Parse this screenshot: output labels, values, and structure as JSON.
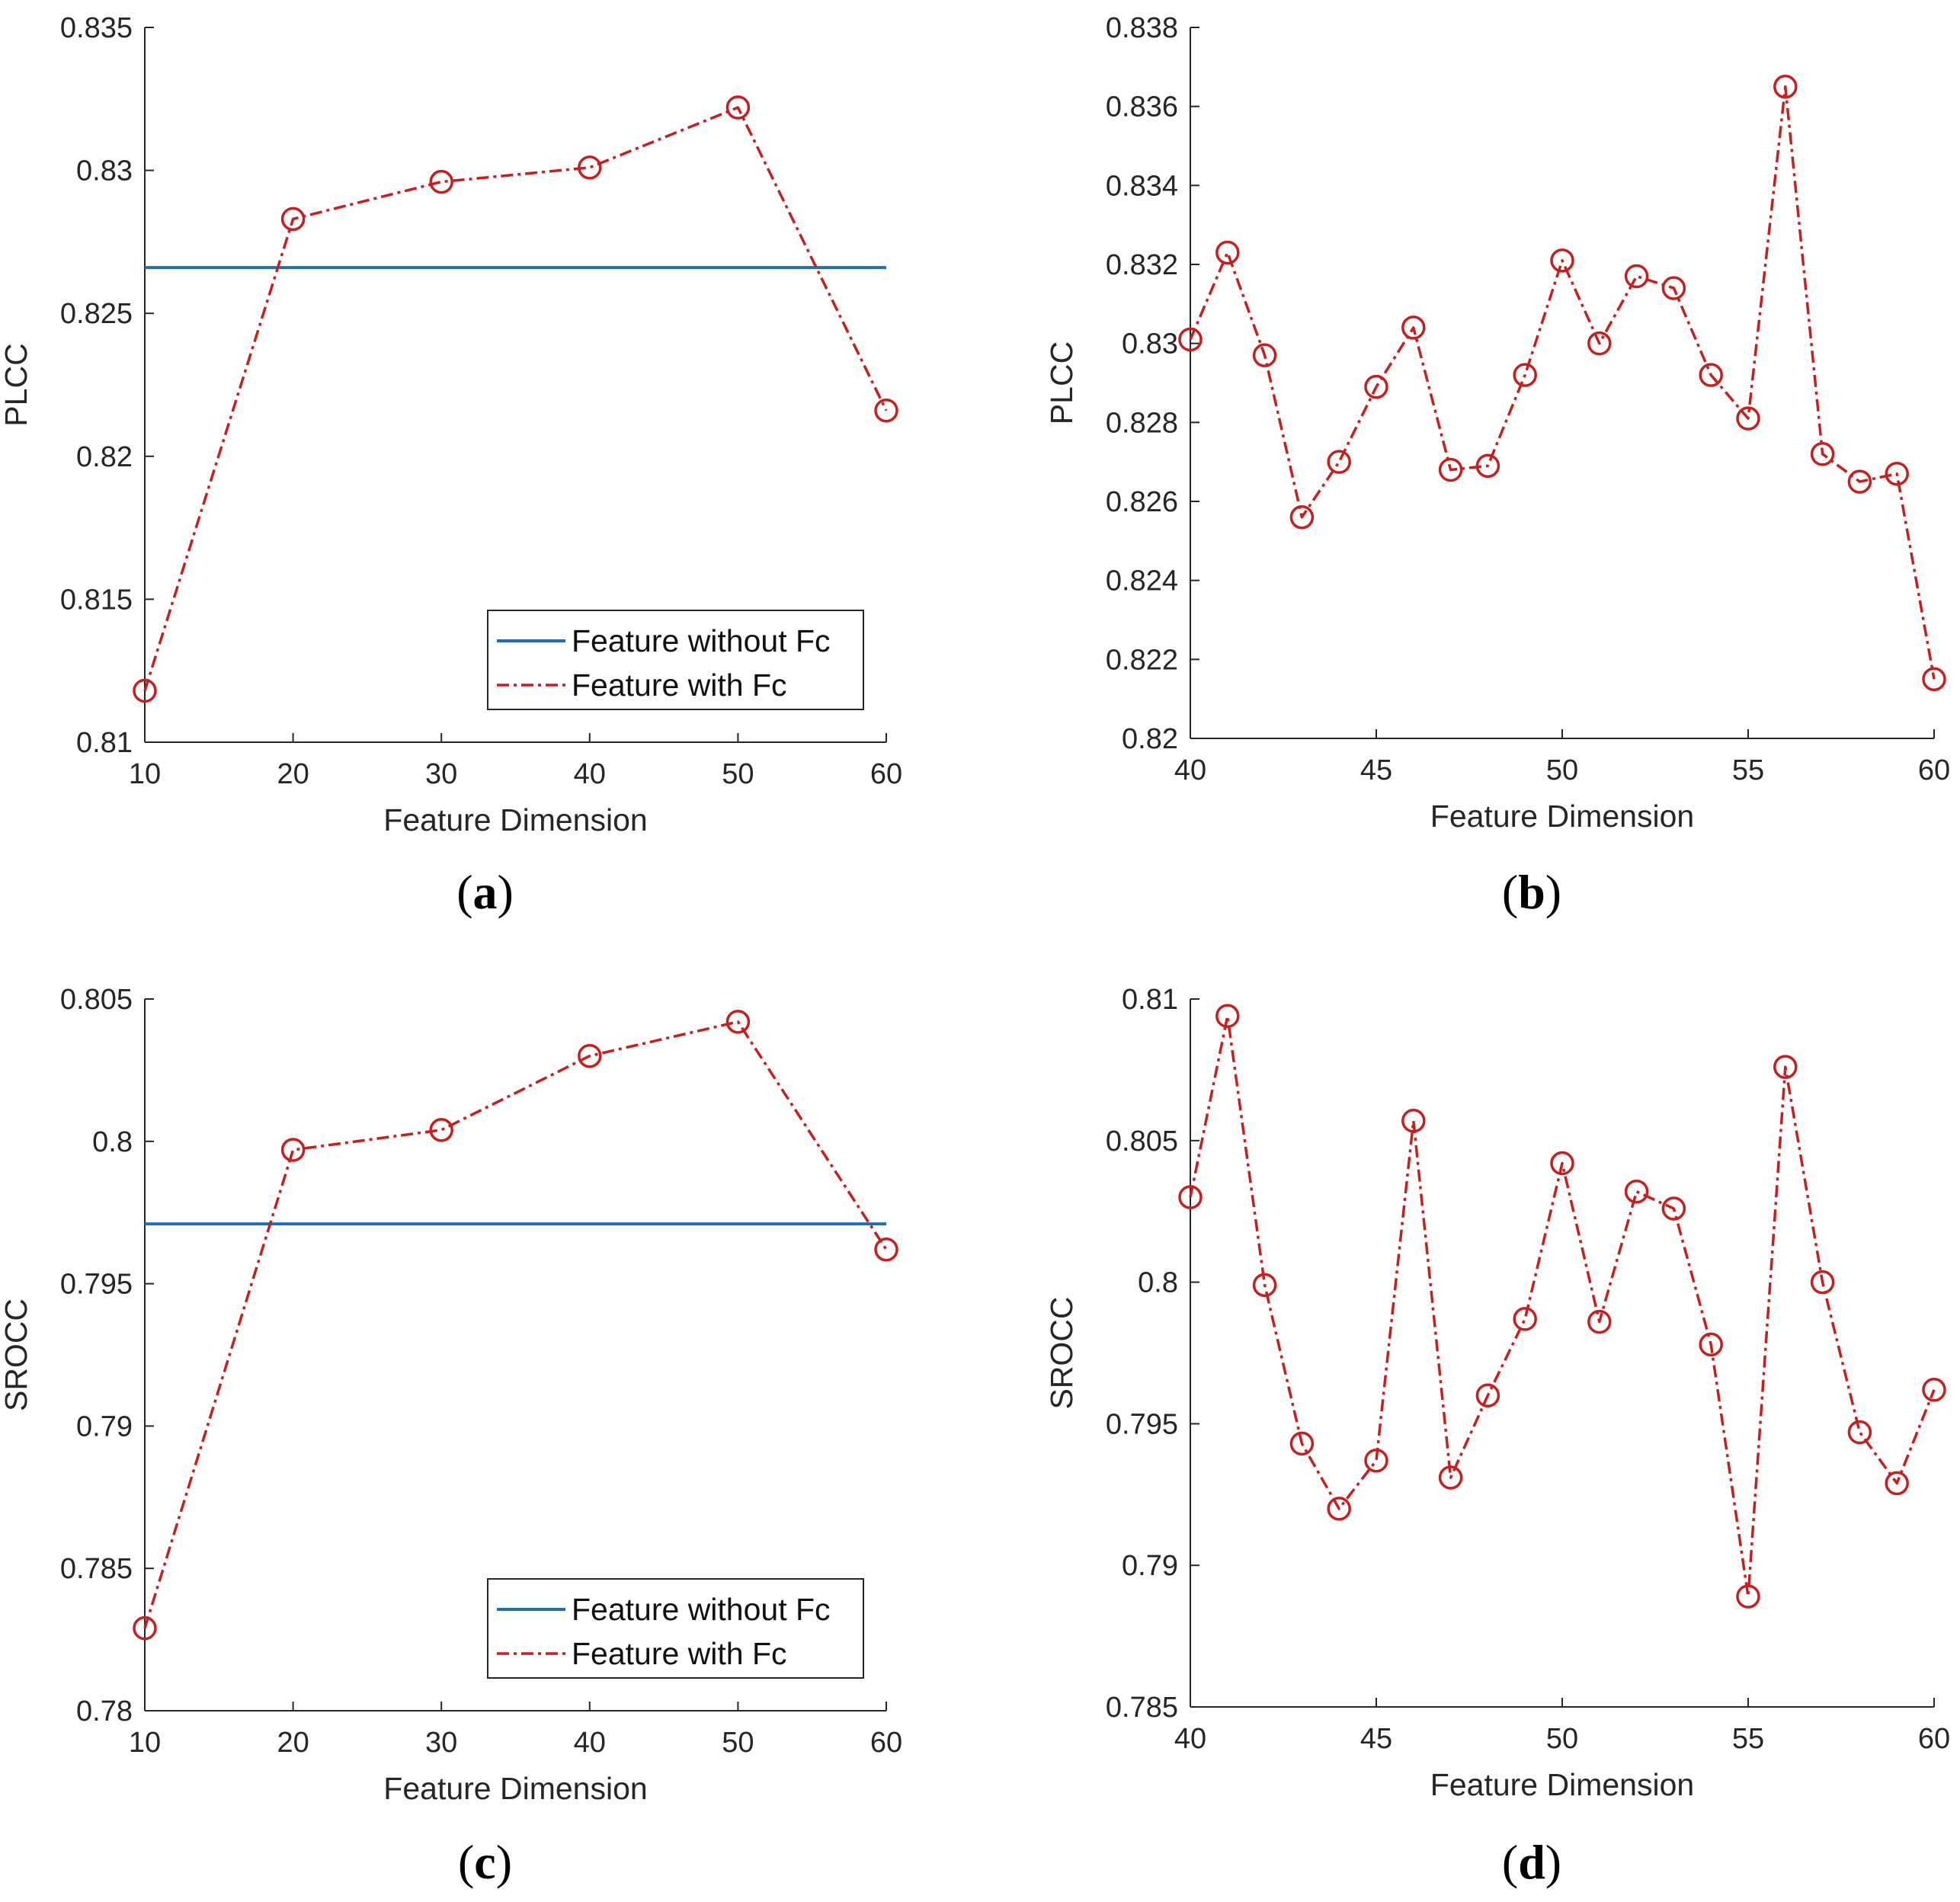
{
  "colors": {
    "baseline": "#1f6fb2",
    "series": "#c81e1e",
    "axis": "#262626",
    "legend_border": "#262626"
  },
  "legend": {
    "baseline_label": "Feature without Fc",
    "series_label": "Feature with Fc"
  },
  "chart_data": [
    {
      "id": "a",
      "type": "line",
      "panel_label": "a",
      "xlabel": "Feature Dimension",
      "ylabel": "PLCC",
      "xlim": [
        10,
        60
      ],
      "ylim": [
        0.81,
        0.835
      ],
      "xticks": [
        10,
        20,
        30,
        40,
        50,
        60
      ],
      "xtick_labels": [
        "10",
        "20",
        "30",
        "40",
        "50",
        "60"
      ],
      "yticks": [
        0.81,
        0.815,
        0.82,
        0.825,
        0.83,
        0.835
      ],
      "ytick_labels": [
        "0.81",
        "0.815",
        "0.82",
        "0.825",
        "0.83",
        "0.835"
      ],
      "legend_position": "bottom-right",
      "baseline": {
        "name": "Feature without Fc",
        "value": 0.8266
      },
      "series": [
        {
          "name": "Feature with Fc",
          "style": "dash-dot",
          "marker": "circle",
          "x": [
            10,
            20,
            30,
            40,
            50,
            60
          ],
          "values": [
            0.8118,
            0.8283,
            0.8296,
            0.8301,
            0.8322,
            0.8216
          ]
        }
      ]
    },
    {
      "id": "b",
      "type": "line",
      "panel_label": "b",
      "xlabel": "Feature Dimension",
      "ylabel": "PLCC",
      "xlim": [
        40,
        60
      ],
      "ylim": [
        0.82,
        0.838
      ],
      "xticks": [
        40,
        45,
        50,
        55,
        60
      ],
      "xtick_labels": [
        "40",
        "45",
        "50",
        "55",
        "60"
      ],
      "yticks": [
        0.82,
        0.822,
        0.824,
        0.826,
        0.828,
        0.83,
        0.832,
        0.834,
        0.836,
        0.838
      ],
      "ytick_labels": [
        "0.82",
        "0.822",
        "0.824",
        "0.826",
        "0.828",
        "0.83",
        "0.832",
        "0.834",
        "0.836",
        "0.838"
      ],
      "series": [
        {
          "name": "Feature with Fc",
          "style": "dash-dot",
          "marker": "circle",
          "x": [
            40,
            41,
            42,
            43,
            44,
            45,
            46,
            47,
            48,
            49,
            50,
            51,
            52,
            53,
            54,
            55,
            56,
            57,
            58,
            59,
            60
          ],
          "values": [
            0.8301,
            0.8323,
            0.8297,
            0.8256,
            0.827,
            0.8289,
            0.8304,
            0.8268,
            0.8269,
            0.8292,
            0.8321,
            0.83,
            0.8317,
            0.8314,
            0.8292,
            0.8281,
            0.8365,
            0.8272,
            0.8265,
            0.8267,
            0.8215
          ]
        }
      ]
    },
    {
      "id": "c",
      "type": "line",
      "panel_label": "c",
      "xlabel": "Feature Dimension",
      "ylabel": "SROCC",
      "xlim": [
        10,
        60
      ],
      "ylim": [
        0.78,
        0.805
      ],
      "xticks": [
        10,
        20,
        30,
        40,
        50,
        60
      ],
      "xtick_labels": [
        "10",
        "20",
        "30",
        "40",
        "50",
        "60"
      ],
      "yticks": [
        0.78,
        0.785,
        0.79,
        0.795,
        0.8,
        0.805
      ],
      "ytick_labels": [
        "0.78",
        "0.785",
        "0.79",
        "0.795",
        "0.8",
        "0.805"
      ],
      "legend_position": "bottom-right",
      "baseline": {
        "name": "Feature without Fc",
        "value": 0.7971
      },
      "series": [
        {
          "name": "Feature with Fc",
          "style": "dash-dot",
          "marker": "circle",
          "x": [
            10,
            20,
            30,
            40,
            50,
            60
          ],
          "values": [
            0.7829,
            0.7997,
            0.8004,
            0.803,
            0.8042,
            0.7962
          ]
        }
      ]
    },
    {
      "id": "d",
      "type": "line",
      "panel_label": "d",
      "xlabel": "Feature Dimension",
      "ylabel": "SROCC",
      "xlim": [
        40,
        60
      ],
      "ylim": [
        0.785,
        0.81
      ],
      "xticks": [
        40,
        45,
        50,
        55,
        60
      ],
      "xtick_labels": [
        "40",
        "45",
        "50",
        "55",
        "60"
      ],
      "yticks": [
        0.785,
        0.79,
        0.795,
        0.8,
        0.805,
        0.81
      ],
      "ytick_labels": [
        "0.785",
        "0.79",
        "0.795",
        "0.8",
        "0.805",
        "0.81"
      ],
      "series": [
        {
          "name": "Feature with Fc",
          "style": "dash-dot",
          "marker": "circle",
          "x": [
            40,
            41,
            42,
            43,
            44,
            45,
            46,
            47,
            48,
            49,
            50,
            51,
            52,
            53,
            54,
            55,
            56,
            57,
            58,
            59,
            60
          ],
          "values": [
            0.803,
            0.8094,
            0.7999,
            0.7943,
            0.792,
            0.7937,
            0.8057,
            0.7931,
            0.796,
            0.7987,
            0.8042,
            0.7986,
            0.8032,
            0.8026,
            0.7978,
            0.7889,
            0.8076,
            0.8,
            0.7947,
            0.7929,
            0.7962
          ]
        }
      ]
    }
  ]
}
